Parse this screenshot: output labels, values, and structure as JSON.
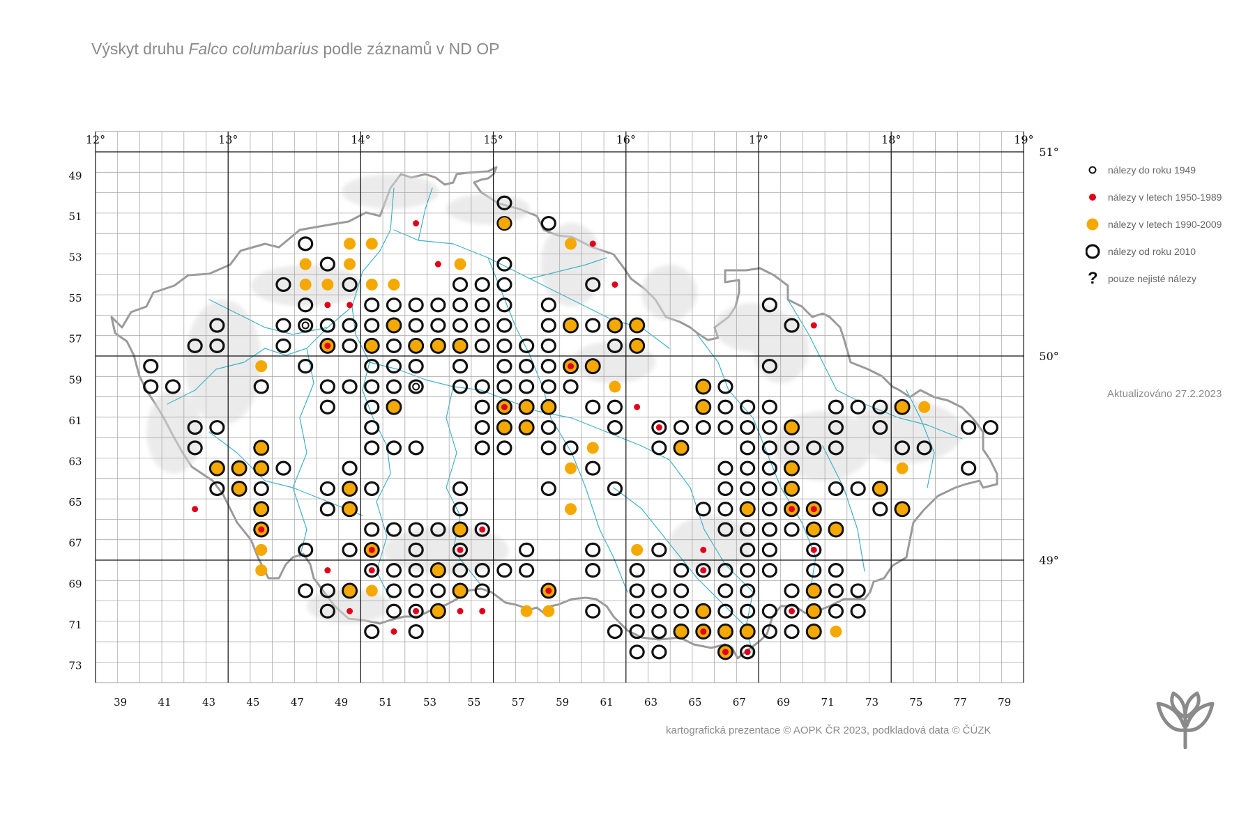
{
  "title": {
    "prefix": "Výskyt druhu ",
    "species": "Falco columbarius",
    "suffix": " podle záznamů v ND OP"
  },
  "axes": {
    "longitude_labels": [
      "12°",
      "13°",
      "14°",
      "15°",
      "16°",
      "17°",
      "18°",
      "19°"
    ],
    "latitude_labels": [
      "51°",
      "50°",
      "49°"
    ],
    "row_labels": [
      "49",
      "51",
      "53",
      "55",
      "57",
      "59",
      "61",
      "63",
      "65",
      "67",
      "69",
      "71",
      "73"
    ],
    "column_labels": [
      "39",
      "41",
      "43",
      "45",
      "47",
      "49",
      "51",
      "53",
      "55",
      "57",
      "59",
      "61",
      "63",
      "65",
      "67",
      "69",
      "71",
      "73",
      "75",
      "77",
      "79"
    ]
  },
  "grid": {
    "columns_from": 38,
    "columns_to": 79,
    "rows_from": 48,
    "rows_to": 73
  },
  "legend": [
    {
      "key": "pre1949",
      "label": "nálezy do roku 1949"
    },
    {
      "key": "y1950_1989",
      "label": "nálezy v letech 1950-1989"
    },
    {
      "key": "y1990_2009",
      "label": "nálezy v letech 1990-2009"
    },
    {
      "key": "since2010",
      "label": "nálezy od roku 2010"
    },
    {
      "key": "uncertain",
      "label": "pouze nejisté nálezy",
      "glyph": "?"
    }
  ],
  "colors": {
    "orange": "#f5a800",
    "red": "#e0001a",
    "black": "#111111",
    "grid": "#a8a8a8",
    "river": "#3cb3c8",
    "border": "#9a9a9a",
    "relief": "#dcdcdc"
  },
  "updated": "Aktualizováno 27.2.2023",
  "credit": "kartografická prezentace © AOPK ČR 2023, podkladová data © ČÚZK",
  "map_data": {
    "cells": [
      "5650:k",
      "5651:k",
      "5851:k",
      "5651:o",
      "4752:k",
      "4952:o",
      "5052:o",
      "5251:r",
      "5852:K",
      "5952:o",
      "6052:r",
      "4753:o",
      "4853:k",
      "4953:o",
      "5653:k",
      "5353:r",
      "5453:o",
      "4654:k",
      "4754:o",
      "4854:o",
      "4954:k",
      "5054:o",
      "5154:o",
      "5454:k",
      "5554:k",
      "5654:k",
      "6054:k",
      "6154:r",
      "4755:k",
      "4855:r",
      "4955:r",
      "5055:k",
      "5155:k",
      "5255:k",
      "5355:k",
      "5455:k",
      "5555:k",
      "5655:k",
      "5855:k",
      "6855:k",
      "4356:k",
      "4656:k",
      "4756:p",
      "4856:k",
      "4956:k",
      "5056:k",
      "5156:O",
      "5256:k",
      "5356:k",
      "5456:k",
      "5556:k",
      "5656:k",
      "5856:k",
      "5956:O",
      "6056:k",
      "6156:O",
      "6256:O",
      "6956:k",
      "7056:r",
      "4257:k",
      "4357:k",
      "4657:k",
      "4857:OR",
      "4957:k",
      "5057:O",
      "5157:k",
      "5257:O",
      "5357:O",
      "5457:O",
      "5557:k",
      "5657:k",
      "5757:k",
      "5857:k",
      "6157:k",
      "6257:O",
      "4058:k",
      "4558:o",
      "4758:k",
      "5058:k",
      "5158:k",
      "5258:k",
      "5458:k",
      "5658:k",
      "5758:k",
      "5858:k",
      "5958:OR",
      "6058:O",
      "6858:k",
      "4059:k",
      "4159:k",
      "4559:k",
      "4859:k",
      "4959:k",
      "5059:k",
      "5159:k",
      "5259:p",
      "5459:k",
      "5559:k",
      "5659:k",
      "5759:k",
      "5859:k",
      "5959:k",
      "6159:o",
      "6559:O",
      "6659:k",
      "4860:k",
      "5060:k",
      "5160:O",
      "5560:k",
      "5660:OR",
      "5760:O",
      "5860:O",
      "6060:k",
      "6160:k",
      "6260:r",
      "6560:O",
      "6660:k",
      "6760:k",
      "6860:k",
      "7160:k",
      "7260:k",
      "7360:k",
      "7460:O",
      "7560:o",
      "4261:k",
      "4361:k",
      "5061:k",
      "5561:k",
      "5661:O",
      "5761:O",
      "5861:k",
      "6161:k",
      "6361:kR",
      "6461:k",
      "6561:k",
      "6661:k",
      "6761:k",
      "6861:k",
      "6961:O",
      "7161:k",
      "7361:k",
      "7761:k",
      "7861:k",
      "4262:k",
      "4562:O",
      "5062:k",
      "5162:k",
      "5262:k",
      "5562:k",
      "5662:k",
      "5862:k",
      "5962:k",
      "6062:o",
      "6362:k",
      "6462:O",
      "6762:k",
      "6862:k",
      "6962:k",
      "7062:k",
      "7162:k",
      "7462:k",
      "7562:k",
      "4363:O",
      "4463:O",
      "4563:O",
      "4663:k",
      "4963:k",
      "5963:o",
      "6063:k",
      "6663:k",
      "6763:k",
      "6863:k",
      "6963:O",
      "7463:o",
      "7763:k",
      "4364:k",
      "4464:O",
      "4564:k",
      "4864:k",
      "4964:O",
      "5064:k",
      "5464:k",
      "5864:k",
      "6164:k",
      "6664:k",
      "6764:k",
      "6864:k",
      "6964:O",
      "7164:k",
      "7264:k",
      "7364:O",
      "4265:r",
      "4565:O",
      "4865:k",
      "4965:O",
      "5465:k",
      "5965:o",
      "6565:k",
      "6665:k",
      "6765:O",
      "6865:k",
      "6965:OR",
      "7065:OR",
      "7365:k",
      "7465:O",
      "4566:OR",
      "5066:k",
      "5166:k",
      "5266:k",
      "5366:k",
      "5466:O",
      "5566:kR",
      "6666:k",
      "6766:k",
      "6866:k",
      "6966:k",
      "7066:O",
      "7166:O",
      "4567:o",
      "4767:k",
      "4967:k",
      "5067:OR",
      "5267:k",
      "5467:kR",
      "5767:k",
      "6067:k",
      "6267:o",
      "6367:k",
      "6567:r",
      "6767:k",
      "6867:k",
      "7067:kR",
      "4568:o",
      "4868:r",
      "5068:kR",
      "5168:k",
      "5268:k",
      "5368:O",
      "5468:k",
      "5568:k",
      "5668:k",
      "5768:k",
      "6068:k",
      "6268:k",
      "6468:k",
      "6568:kR",
      "6668:k",
      "6768:k",
      "6868:k",
      "7068:k",
      "7168:k",
      "4769:k",
      "4869:k",
      "4969:O",
      "5069:o",
      "5169:k",
      "5269:k",
      "5369:k",
      "5469:O",
      "5569:k",
      "5869:OR",
      "6269:k",
      "6369:k",
      "6469:k",
      "6669:k",
      "6769:k",
      "6969:k",
      "7069:O",
      "7169:k",
      "7269:k",
      "4870:k",
      "4970:r",
      "5170:k",
      "5270:kR",
      "5370:O",
      "5470:r",
      "5570:r",
      "5770:o",
      "5870:o",
      "6070:k",
      "6270:k",
      "6370:k",
      "6470:k",
      "6570:O",
      "6670:k",
      "6770:k",
      "6870:k",
      "6970:kR",
      "7070:O",
      "7170:k",
      "7270:k",
      "5071:k",
      "5171:r",
      "5271:k",
      "6171:k",
      "6271:k",
      "6371:k",
      "6471:O",
      "6571:OR",
      "6671:O",
      "6771:O",
      "6871:k",
      "6971:k",
      "7071:O",
      "7171:o",
      "6272:k",
      "6372:k",
      "6672:OR",
      "6772:kR"
    ]
  }
}
